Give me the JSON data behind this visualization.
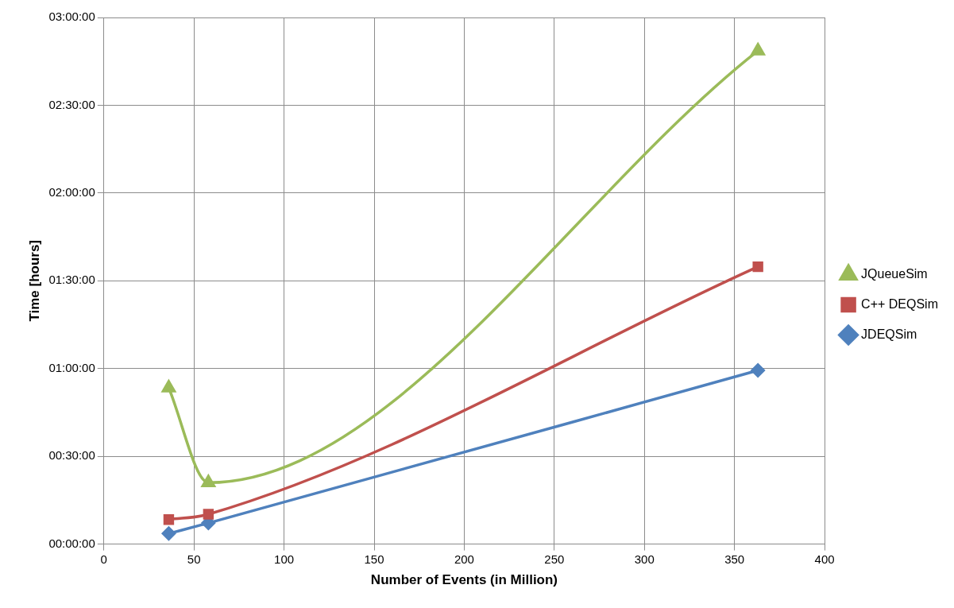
{
  "chart_data": {
    "type": "line",
    "xlabel": "Number of Events (in Million)",
    "ylabel": "Time [hours]",
    "xlim": [
      0,
      400
    ],
    "xticks": [
      0,
      50,
      100,
      150,
      200,
      250,
      300,
      350,
      400
    ],
    "ylim": [
      0,
      3
    ],
    "yticks": [
      {
        "value": 0,
        "label": "00:00:00"
      },
      {
        "value": 0.5,
        "label": "00:30:00"
      },
      {
        "value": 1,
        "label": "01:00:00"
      },
      {
        "value": 1.5,
        "label": "01:30:00"
      },
      {
        "value": 2,
        "label": "02:00:00"
      },
      {
        "value": 2.5,
        "label": "02:30:00"
      },
      {
        "value": 3,
        "label": "03:00:00"
      }
    ],
    "grid": true,
    "legend": "right",
    "series": [
      {
        "name": "JQueueSim",
        "color": "#9bbb59",
        "marker": "triangle",
        "x": [
          36,
          58,
          363
        ],
        "values": [
          0.89,
          0.35,
          2.81
        ]
      },
      {
        "name": "C++ DEQSim",
        "color": "#c0504d",
        "marker": "square",
        "x": [
          36,
          58,
          363
        ],
        "values": [
          0.14,
          0.17,
          1.58
        ]
      },
      {
        "name": "JDEQSim",
        "color": "#4f81bd",
        "marker": "diamond",
        "x": [
          36,
          58,
          363
        ],
        "values": [
          0.06,
          0.12,
          0.99
        ]
      }
    ]
  }
}
